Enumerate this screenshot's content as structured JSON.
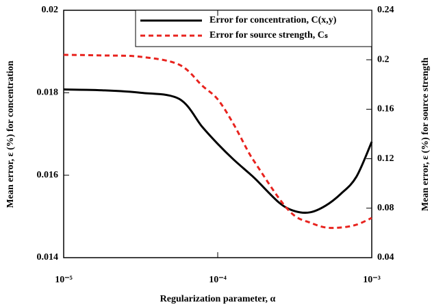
{
  "chart_data": {
    "type": "line",
    "x_label": "Regularization parameter, α",
    "y_label": "Mean error, ε (%) for concentration",
    "y2_label": "Mean error, ε (%) for source strength",
    "x_log": true,
    "legend": "upper right",
    "x": [
      1e-05,
      1.778e-05,
      3.162e-05,
      5.623e-05,
      7.943e-05,
      0.0001,
      0.0001259,
      0.0001585,
      0.0001778,
      0.0002512,
      0.0003162,
      0.0003981,
      0.0005012,
      0.000631,
      0.0007943,
      0.001
    ],
    "series": [
      {
        "name": "Error for concentration, C(x,y)",
        "color": "#000000",
        "dash": "solid",
        "axis": "y",
        "values": [
          0.01808,
          0.01806,
          0.018,
          0.01785,
          0.01717,
          0.01676,
          0.01639,
          0.01606,
          0.01589,
          0.01533,
          0.01513,
          0.0151,
          0.01526,
          0.01555,
          0.01596,
          0.01681
        ]
      },
      {
        "name": "Error for source strength, Cₛ",
        "color": "#e8231e",
        "dash": "dashed",
        "axis": "y2",
        "values": [
          0.204,
          0.2035,
          0.2024,
          0.196,
          0.179,
          0.168,
          0.1486,
          0.1253,
          0.1154,
          0.0876,
          0.0738,
          0.0683,
          0.0644,
          0.0644,
          0.0666,
          0.0721
        ]
      }
    ],
    "xlim": [
      1e-05,
      0.001
    ],
    "xticks": [
      {
        "value": 1e-05,
        "label": "10⁻⁵"
      },
      {
        "value": 0.0001,
        "label": "10⁻⁴"
      },
      {
        "value": 0.001,
        "label": "10⁻³"
      }
    ],
    "ylim": [
      0.014,
      0.02
    ],
    "yticks": [
      0.014,
      0.016,
      0.018,
      0.02
    ],
    "y2lim": [
      0.04,
      0.24
    ],
    "y2ticks": [
      0.04,
      0.08,
      0.12,
      0.16,
      0.2,
      0.24
    ]
  }
}
